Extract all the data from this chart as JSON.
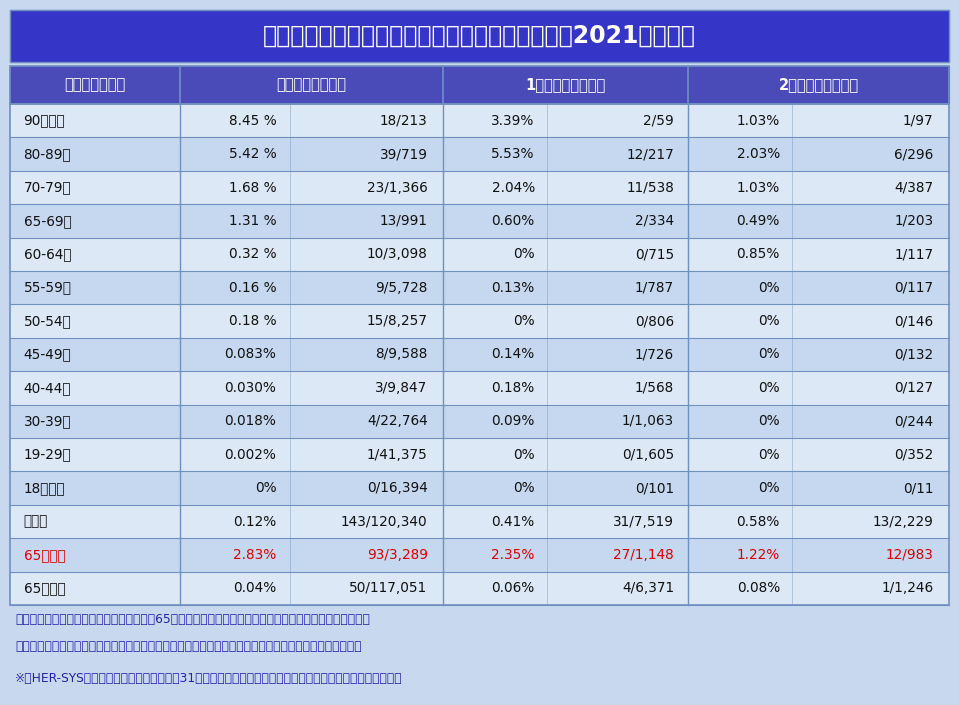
{
  "title": "コロナ感染陽性者のワクチン接種回数と致死率（2021年７月）",
  "title_bg": "#3535c8",
  "title_color": "#ffffff",
  "header_bg": "#4a4ab8",
  "header_color": "#ffffff",
  "row_bg_light": "#dce8f5",
  "row_bg_dark": "#c5d8ef",
  "text_color": "#111111",
  "red_color": "#dd0000",
  "border_color": "#7090c0",
  "note_color": "#2222aa",
  "fig_bg": "#c8d8ee",
  "col_headers": [
    "コロナ陽性患者",
    "未接種者　致死率",
    "1回接種者　致死率",
    "2回接種者　致死率"
  ],
  "rows": [
    [
      "90歳以上",
      "8.45 %",
      "18/213",
      "3.39%",
      "2/59",
      "1.03%",
      "1/97",
      false
    ],
    [
      "80-89歳",
      "5.42 %",
      "39/719",
      "5.53%",
      "12/217",
      "2.03%",
      "6/296",
      false
    ],
    [
      "70-79歳",
      "1.68 %",
      "23/1,366",
      "2.04%",
      "11/538",
      "1.03%",
      "4/387",
      false
    ],
    [
      "65-69歳",
      "1.31 %",
      "13/991",
      "0.60%",
      "2/334",
      "0.49%",
      "1/203",
      false
    ],
    [
      "60-64歳",
      "0.32 %",
      "10/3,098",
      "0%",
      "0/715",
      "0.85%",
      "1/117",
      false
    ],
    [
      "55-59歳",
      "0.16 %",
      "9/5,728",
      "0.13%",
      "1/787",
      "0%",
      "0/117",
      false
    ],
    [
      "50-54歳",
      "0.18 %",
      "15/8,257",
      "0%",
      "0/806",
      "0%",
      "0/146",
      false
    ],
    [
      "45-49歳",
      "0.083%",
      "8/9,588",
      "0.14%",
      "1/726",
      "0%",
      "0/132",
      false
    ],
    [
      "40-44歳",
      "0.030%",
      "3/9,847",
      "0.18%",
      "1/568",
      "0%",
      "0/127",
      false
    ],
    [
      "30-39歳",
      "0.018%",
      "4/22,764",
      "0.09%",
      "1/1,063",
      "0%",
      "0/244",
      false
    ],
    [
      "19-29歳",
      "0.002%",
      "1/41,375",
      "0%",
      "0/1,605",
      "0%",
      "0/352",
      false
    ],
    [
      "18歳以下",
      "0%",
      "0/16,394",
      "0%",
      "0/101",
      "0%",
      "0/11",
      false
    ],
    [
      "全年齢",
      "0.12%",
      "143/120,340",
      "0.41%",
      "31/7,519",
      "0.58%",
      "13/2,229",
      false
    ],
    [
      "65歳以上",
      "2.83%",
      "93/3,289",
      "2.35%",
      "27/1,148",
      "1.22%",
      "12/983",
      true
    ],
    [
      "65歳未満",
      "0.04%",
      "50/117,051",
      "0.06%",
      "4/6,371",
      "0.08%",
      "1/1,246",
      false
    ]
  ],
  "note1": "注）　期間を絞った調査結果であり、特に65歳未満においては死亡者数が少ないことに留意が必要である",
  "note2": "　　　年齢区分での感染者数が大きく違うため、全年齢での比較よりも、各年齢区分での比較が望ましい",
  "note3": "※　HER-SYSデータ集計値　死亡数は８月31日時点で集計　死亡の入力率は７割程度である点に留意が必要"
}
